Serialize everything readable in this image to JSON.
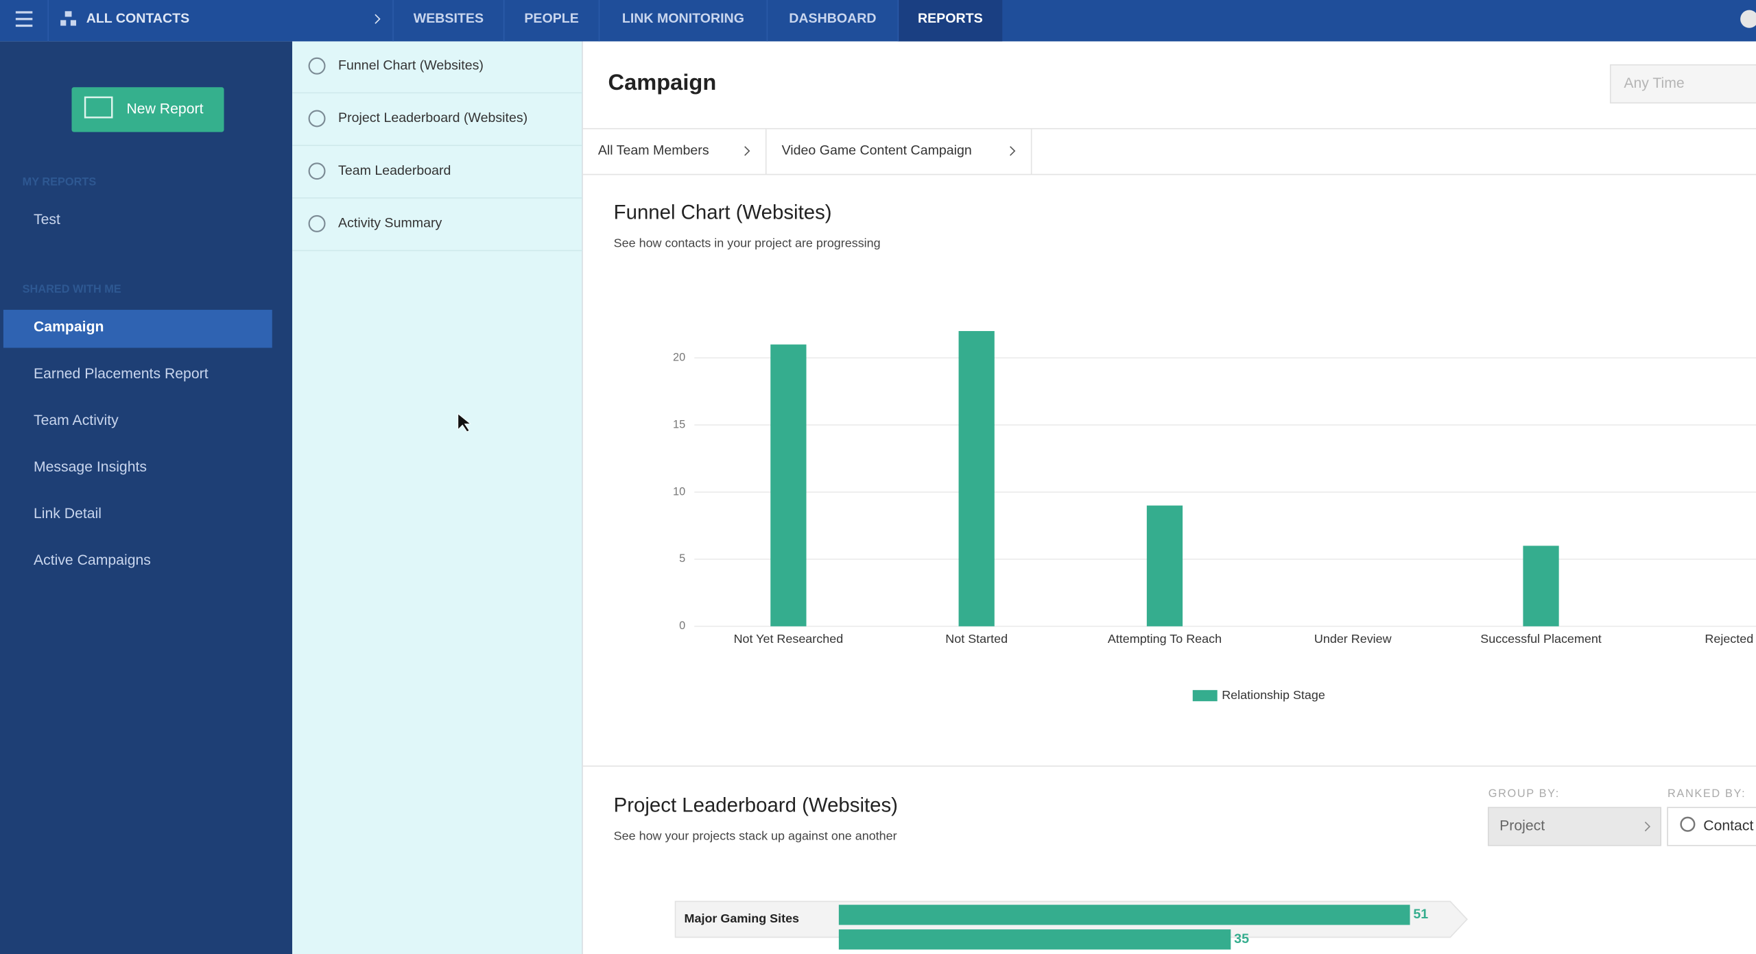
{
  "nav": {
    "account": "ALL CONTACTS",
    "tabs": [
      "WEBSITES",
      "PEOPLE",
      "LINK MONITORING",
      "DASHBOARD",
      "REPORTS"
    ],
    "active": 4
  },
  "sidebar": {
    "new_report": "New Report",
    "my_reports_heading": "MY REPORTS",
    "my_reports": [
      "Test"
    ],
    "shared_heading": "SHARED WITH ME",
    "shared": [
      "Campaign",
      "Earned Placements Report",
      "Team Activity",
      "Message Insights",
      "Link Detail",
      "Active Campaigns"
    ],
    "active": 0
  },
  "report_sections": [
    "Funnel Chart (Websites)",
    "Project Leaderboard (Websites)",
    "Team Leaderboard",
    "Activity Summary"
  ],
  "main": {
    "title": "Campaign",
    "time_filter": "Any Time",
    "filters": [
      "All Team Members",
      "Video Game Content Campaign"
    ]
  },
  "chart_data": [
    {
      "type": "bar",
      "title": "Funnel Chart (Websites)",
      "subtitle": "See how contacts in your project are progressing",
      "categories": [
        "Not Yet Researched",
        "Not Started",
        "Attempting To Reach",
        "Under Review",
        "Successful Placement",
        "Rejected"
      ],
      "series": [
        {
          "name": "Relationship Stage",
          "color": "#35ad8e",
          "values": [
            21,
            22,
            9,
            0,
            6,
            0
          ]
        }
      ],
      "ylim": [
        0,
        25
      ],
      "yticks": [
        0,
        5,
        10,
        15,
        20
      ],
      "grid": true,
      "legend": "bottom"
    },
    {
      "type": "hbar",
      "title": "Project Leaderboard (Websites)",
      "subtitle": "See how your projects stack up against one another",
      "categories": [
        "Major Gaming Sites",
        null
      ],
      "values": [
        51,
        35
      ],
      "color": "#35ad8e",
      "xlim": [
        0,
        56
      ],
      "group_by_label": "GROUP BY:",
      "group_by": "Project",
      "ranked_by_label": "RANKED BY:",
      "ranked_by": "Contact"
    }
  ]
}
